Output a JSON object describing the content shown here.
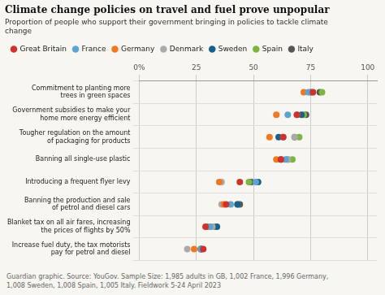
{
  "chart_data": {
    "type": "dot",
    "orientation": "horizontal",
    "title": "Climate change policies on travel and fuel prove unpopular",
    "subtitle": "Proportion of people who support their government bringing in policies to tackle climate\nchange",
    "annotations": [
      "Guardian graphic. Source: YouGov. Sample Size: 1,985 adults in GB, 1,002 France, 1,996 Germany,\n1,008 Sweden, 1,008 Spain, 1,005 Italy. Fieldwork 5-24 April 2023"
    ],
    "categories": [
      "Commitment to planting more\ntrees in green spaces",
      "Government subsidies to make your\nhome more energy efficient",
      "Tougher regulation on the amount\nof packaging for products",
      "Banning all single-use plastic",
      "Introducing a frequent flyer levy",
      "Banning the production and sale\nof petrol and diesel cars",
      "Blanket tax on all air fares, increasing\nthe prices of flights by 50%",
      "Increase fuel duty, the tax motorists\npay for petrol and diesel"
    ],
    "series": [
      {
        "name": "Great Britain",
        "color": "#d0312d",
        "values": [
          76,
          69,
          63,
          62,
          44,
          38,
          29,
          28
        ]
      },
      {
        "name": "France",
        "color": "#5ba4cf",
        "values": [
          74,
          65,
          63,
          64,
          51,
          40,
          31,
          27
        ]
      },
      {
        "name": "Germany",
        "color": "#f07820",
        "values": [
          72,
          60,
          57,
          60,
          35,
          37,
          30,
          24
        ]
      },
      {
        "name": "Denmark",
        "color": "#aaaaaa",
        "values": [
          76,
          69,
          68,
          65,
          36,
          36,
          32,
          21
        ]
      },
      {
        "name": "Sweden",
        "color": "#1a5f8a",
        "values": [
          75,
          71,
          61,
          62,
          52,
          43,
          34,
          27
        ]
      },
      {
        "name": "Spain",
        "color": "#7db540",
        "values": [
          80,
          72,
          70,
          67,
          48,
          43,
          33,
          27
        ]
      },
      {
        "name": "Italy",
        "color": "#555555",
        "values": [
          79,
          73,
          68,
          65,
          49,
          44,
          33,
          27
        ]
      }
    ],
    "marker": "circle",
    "xlim": [
      0,
      104
    ],
    "xticks": [
      {
        "value": 0,
        "label": "0%"
      },
      25,
      50,
      75,
      100
    ],
    "grid": true,
    "legend": "top"
  }
}
